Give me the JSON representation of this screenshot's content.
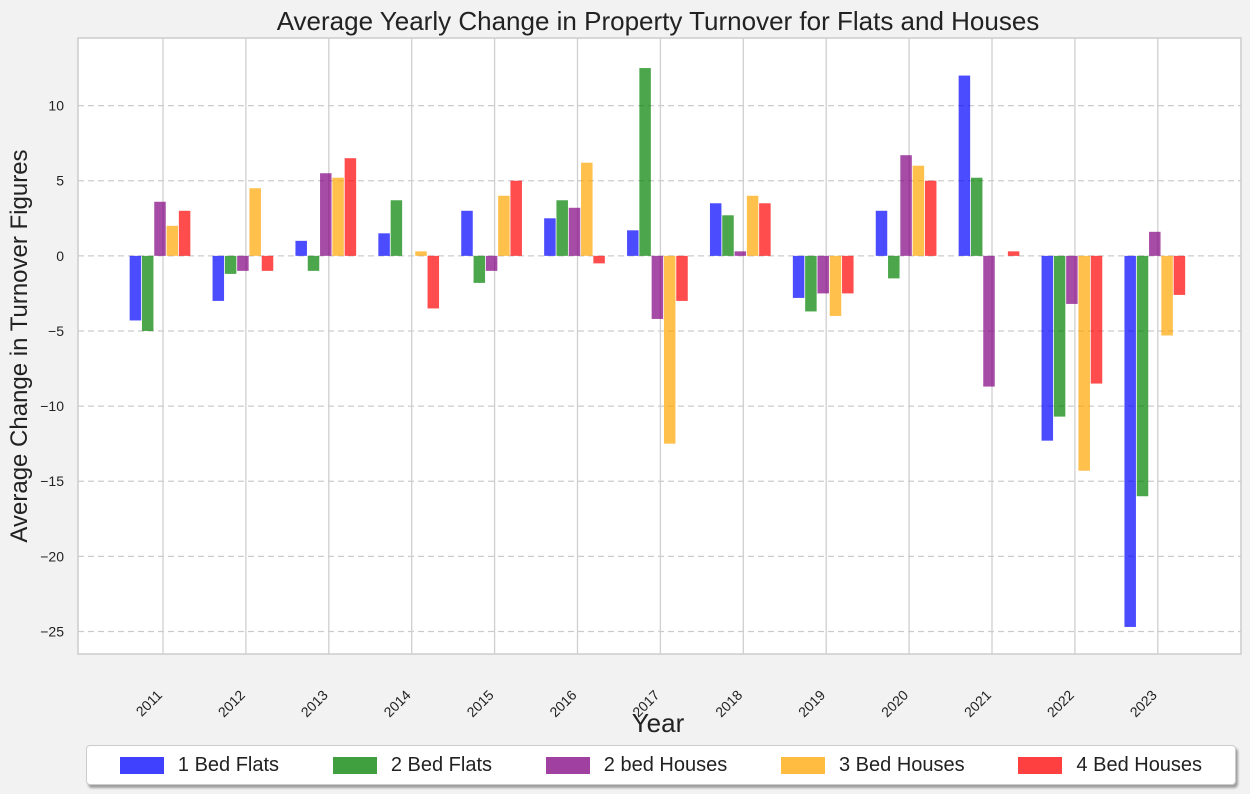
{
  "chart_data": {
    "type": "bar",
    "title": "Average Yearly Change in Property Turnover for Flats and Houses",
    "xlabel": "Year",
    "ylabel": "Average Change in Turnover Figures",
    "categories": [
      "2011",
      "2012",
      "2013",
      "2014",
      "2015",
      "2016",
      "2017",
      "2018",
      "2019",
      "2020",
      "2021",
      "2022",
      "2023"
    ],
    "ylim": [
      -26.5,
      14.5
    ],
    "yticks": [
      -25,
      -20,
      -15,
      -10,
      -5,
      0,
      5,
      10
    ],
    "grid": {
      "y": true,
      "x": true
    },
    "legend_position": "bottom",
    "series": [
      {
        "name": "1 Bed Flats",
        "color": "#0000ff",
        "values": [
          -4.3,
          -3.0,
          1.0,
          1.5,
          3.0,
          2.5,
          1.7,
          3.5,
          -2.8,
          3.0,
          12.0,
          -12.3,
          -24.7
        ]
      },
      {
        "name": "2 Bed Flats",
        "color": "#008000",
        "values": [
          -5.0,
          -1.2,
          -1.0,
          3.7,
          -1.8,
          3.7,
          12.5,
          2.7,
          -3.7,
          -1.5,
          5.2,
          -10.7,
          -16.0
        ]
      },
      {
        "name": "2 bed Houses",
        "color": "#800080",
        "values": [
          3.6,
          -1.0,
          5.5,
          0.0,
          -1.0,
          3.2,
          -4.2,
          0.3,
          -2.5,
          6.7,
          -8.7,
          -3.2,
          1.6
        ]
      },
      {
        "name": "3 Bed Houses",
        "color": "#ffa500",
        "values": [
          2.0,
          4.5,
          5.2,
          0.3,
          4.0,
          6.2,
          -12.5,
          4.0,
          -4.0,
          6.0,
          0.0,
          -14.3,
          -5.3
        ]
      },
      {
        "name": "4 Bed Houses",
        "color": "#ff0000",
        "values": [
          3.0,
          -1.0,
          6.5,
          -3.5,
          5.0,
          -0.5,
          -3.0,
          3.5,
          -2.5,
          5.0,
          0.3,
          -8.5,
          -2.6
        ]
      }
    ]
  }
}
